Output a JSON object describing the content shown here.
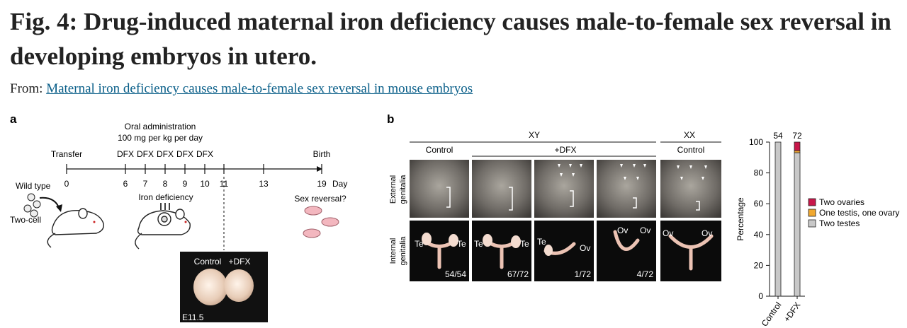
{
  "header": {
    "title": "Fig. 4: Drug-induced maternal iron deficiency causes male-to-female sex reversal in developing embryos in utero.",
    "from_prefix": "From: ",
    "from_link": "Maternal iron deficiency causes male-to-female sex reversal in mouse embryos"
  },
  "panel_a": {
    "label": "a",
    "oral_line1": "Oral administration",
    "oral_line2": "100 mg per kg per day",
    "transfer": "Transfer",
    "birth": "Birth",
    "dfx": [
      "DFX",
      "DFX",
      "DFX",
      "DFX",
      "DFX"
    ],
    "days": [
      "0",
      "6",
      "7",
      "8",
      "9",
      "10",
      "11",
      "13",
      "19"
    ],
    "day_unit": "Day",
    "wild_type": "Wild type",
    "two_cell": "Two-cell",
    "iron_deficiency": "Iron deficiency",
    "sex_reversal": "Sex reversal?",
    "inset": {
      "control": "Control",
      "dfx": "+DFX",
      "stage": "E11.5"
    }
  },
  "panel_b": {
    "label": "b",
    "xy": "XY",
    "xx": "XX",
    "control": "Control",
    "dfx": "+DFX",
    "xx_control": "Control",
    "row_external": [
      "External",
      "genitalia"
    ],
    "row_internal": [
      "Internal",
      "genitalia"
    ],
    "internal_labels": [
      "Te",
      "Te",
      "Te",
      "Te",
      "Te",
      "Ov",
      "Ov",
      "Ov",
      "Ov",
      "Ov"
    ],
    "counts": [
      "54/54",
      "67/72",
      "1/72",
      "4/72"
    ]
  },
  "chart_data": {
    "type": "bar",
    "stacked": true,
    "categories": [
      "Control",
      "+DFX"
    ],
    "bar_top_labels": [
      "54",
      "72"
    ],
    "ylabel": "Percentage",
    "ylim": [
      0,
      100
    ],
    "yticks": [
      "0",
      "20",
      "40",
      "60",
      "80",
      "100"
    ],
    "legend_position": "right",
    "series": [
      {
        "name": "Two testes",
        "color": "#c8c8c8",
        "values": [
          100,
          93.1
        ]
      },
      {
        "name": "One testis, one ovary",
        "color": "#f0a830",
        "values": [
          0,
          1.4
        ]
      },
      {
        "name": "Two ovaries",
        "color": "#c8174a",
        "values": [
          0,
          5.5
        ]
      }
    ],
    "legend_order": [
      "Two ovaries",
      "One testis, one ovary",
      "Two testes"
    ]
  }
}
